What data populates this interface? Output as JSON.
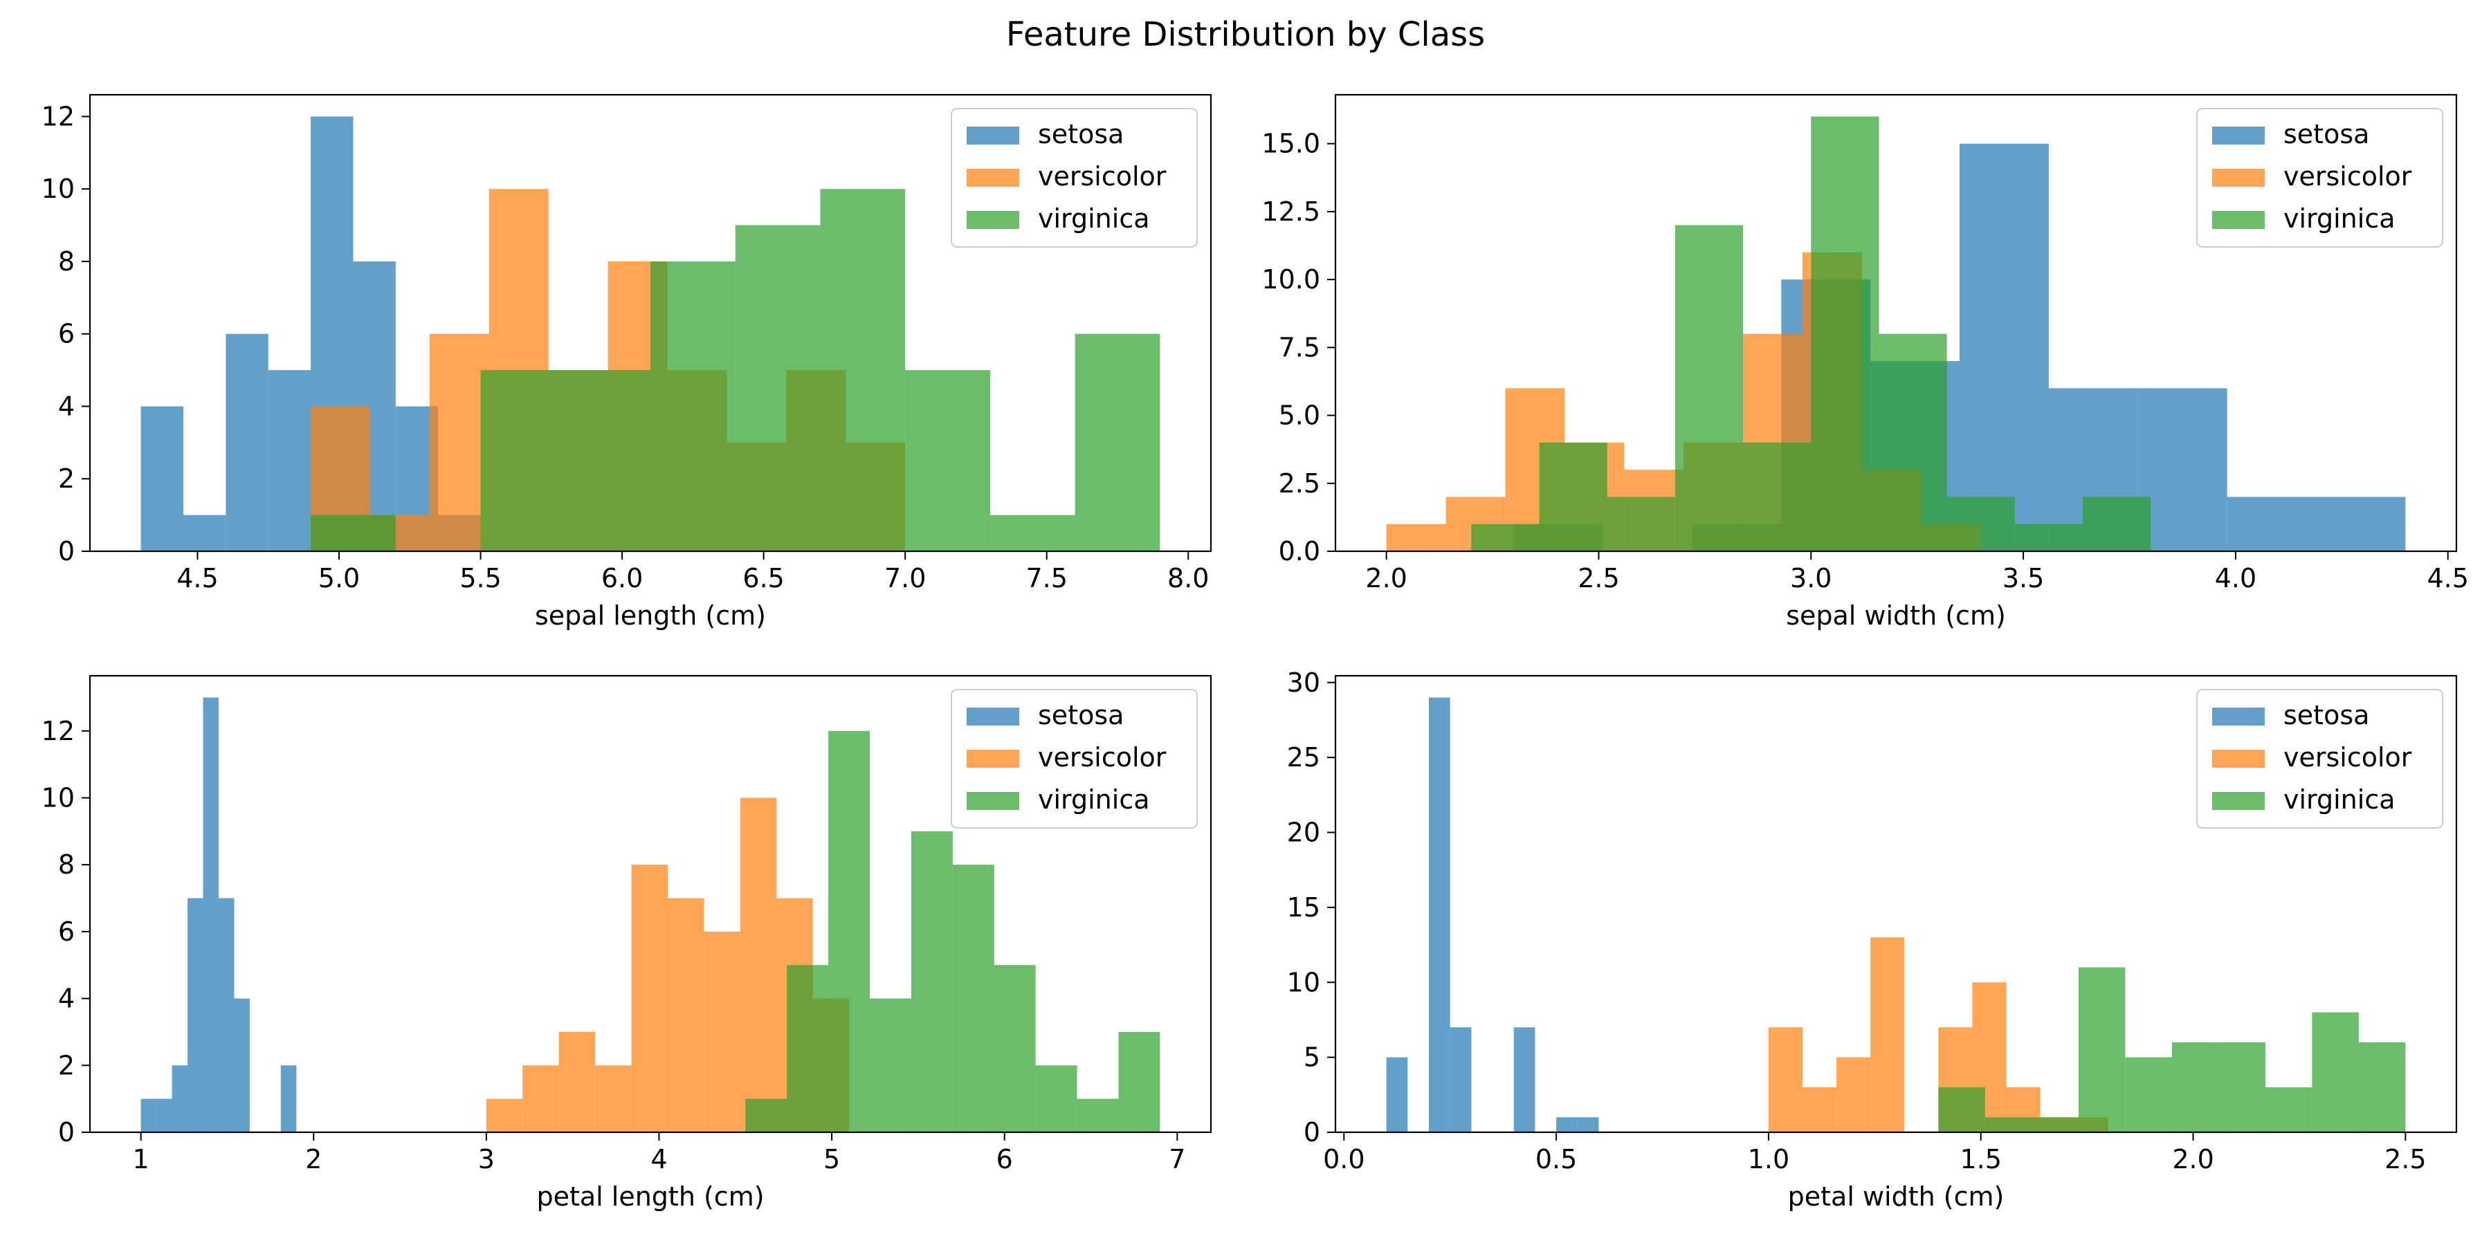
{
  "title": "Feature Distribution by Class",
  "colors": {
    "setosa": "#1f77b4",
    "versicolor": "#ff7f0e",
    "virginica": "#2ca02c"
  },
  "chart_data": [
    {
      "type": "bar",
      "xlabel": "sepal length (cm)",
      "xlim": [
        4.3,
        7.9
      ],
      "ylim": [
        0,
        12.6
      ],
      "xticks": [
        "4.5",
        "5.0",
        "5.5",
        "6.0",
        "6.5",
        "7.0",
        "7.5",
        "8.0"
      ],
      "yticks": [
        "0",
        "2",
        "4",
        "6",
        "8",
        "10",
        "12"
      ],
      "legend": "top-right",
      "series": [
        {
          "name": "setosa",
          "bin_edges": [
            4.3,
            4.45,
            4.6,
            4.75,
            4.9,
            5.05,
            5.2,
            5.35,
            5.5,
            5.65,
            5.8
          ],
          "values": [
            4,
            1,
            6,
            5,
            12,
            8,
            4,
            1,
            0,
            0
          ]
        },
        {
          "name": "versicolor",
          "bin_edges": [
            4.9,
            5.11,
            5.32,
            5.53,
            5.74,
            5.95,
            6.16,
            6.37,
            6.58,
            6.79,
            7.0
          ],
          "values": [
            4,
            1,
            6,
            10,
            5,
            8,
            5,
            3,
            5,
            3
          ]
        },
        {
          "name": "virginica",
          "bin_edges": [
            4.9,
            5.2,
            5.5,
            5.8,
            6.1,
            6.4,
            6.7,
            7.0,
            7.3,
            7.6,
            7.9
          ],
          "values": [
            1,
            0,
            5,
            5,
            8,
            9,
            10,
            5,
            1,
            6
          ]
        }
      ]
    },
    {
      "type": "bar",
      "xlabel": "sepal width (cm)",
      "xlim": [
        2.0,
        4.4
      ],
      "ylim": [
        0,
        16.8
      ],
      "xticks": [
        "2.0",
        "2.5",
        "3.0",
        "3.5",
        "4.0",
        "4.5"
      ],
      "yticks": [
        "0.0",
        "2.5",
        "5.0",
        "7.5",
        "10.0",
        "12.5",
        "15.0"
      ],
      "legend": "top-right",
      "series": [
        {
          "name": "setosa",
          "bin_edges": [
            2.3,
            2.51,
            2.72,
            2.93,
            3.14,
            3.35,
            3.56,
            3.77,
            3.98,
            4.19,
            4.4
          ],
          "values": [
            1,
            0,
            1,
            10,
            7,
            15,
            6,
            6,
            2,
            2
          ]
        },
        {
          "name": "versicolor",
          "bin_edges": [
            2.0,
            2.14,
            2.28,
            2.42,
            2.56,
            2.7,
            2.84,
            2.98,
            3.12,
            3.26,
            3.4
          ],
          "values": [
            1,
            2,
            6,
            4,
            3,
            4,
            8,
            11,
            3,
            1
          ]
        },
        {
          "name": "virginica",
          "bin_edges": [
            2.2,
            2.36,
            2.52,
            2.68,
            2.84,
            3.0,
            3.16,
            3.32,
            3.48,
            3.64,
            3.8
          ],
          "values": [
            1,
            4,
            2,
            12,
            4,
            16,
            8,
            2,
            1,
            2
          ]
        }
      ]
    },
    {
      "type": "bar",
      "xlabel": "petal length (cm)",
      "xlim": [
        1.0,
        6.9
      ],
      "ylim": [
        0,
        13.65
      ],
      "xticks": [
        "1",
        "2",
        "3",
        "4",
        "5",
        "6",
        "7"
      ],
      "yticks": [
        "0",
        "2",
        "4",
        "6",
        "8",
        "10",
        "12"
      ],
      "legend": "top-right",
      "series": [
        {
          "name": "setosa",
          "bin_edges": [
            1.0,
            1.09,
            1.18,
            1.27,
            1.36,
            1.45,
            1.54,
            1.63,
            1.72,
            1.81,
            1.9
          ],
          "values": [
            1,
            1,
            2,
            7,
            13,
            7,
            4,
            0,
            0,
            2
          ]
        },
        {
          "name": "versicolor",
          "bin_edges": [
            3.0,
            3.21,
            3.42,
            3.63,
            3.84,
            4.05,
            4.26,
            4.47,
            4.68,
            4.89,
            5.1
          ],
          "values": [
            1,
            2,
            3,
            2,
            8,
            7,
            6,
            10,
            7,
            4
          ]
        },
        {
          "name": "virginica",
          "bin_edges": [
            4.5,
            4.74,
            4.98,
            5.22,
            5.46,
            5.7,
            5.94,
            6.18,
            6.42,
            6.66,
            6.9
          ],
          "values": [
            1,
            5,
            12,
            4,
            9,
            8,
            5,
            2,
            1,
            3
          ]
        }
      ]
    },
    {
      "type": "bar",
      "xlabel": "petal width (cm)",
      "xlim": [
        0.1,
        2.5
      ],
      "ylim": [
        0,
        30.45
      ],
      "xticks": [
        "0.0",
        "0.5",
        "1.0",
        "1.5",
        "2.0",
        "2.5"
      ],
      "yticks": [
        "0",
        "5",
        "10",
        "15",
        "20",
        "25",
        "30"
      ],
      "legend": "top-right",
      "series": [
        {
          "name": "setosa",
          "bin_edges": [
            0.1,
            0.15,
            0.2,
            0.25,
            0.3,
            0.35,
            0.4,
            0.45,
            0.5,
            0.55,
            0.6
          ],
          "values": [
            5,
            0,
            29,
            7,
            0,
            0,
            7,
            0,
            1,
            1
          ]
        },
        {
          "name": "versicolor",
          "bin_edges": [
            1.0,
            1.08,
            1.16,
            1.24,
            1.32,
            1.4,
            1.48,
            1.56,
            1.64,
            1.72,
            1.8
          ],
          "values": [
            7,
            3,
            5,
            13,
            0,
            7,
            10,
            3,
            1,
            1
          ]
        },
        {
          "name": "virginica",
          "bin_edges": [
            1.4,
            1.51,
            1.62,
            1.73,
            1.84,
            1.95,
            2.06,
            2.17,
            2.28,
            2.39,
            2.5
          ],
          "values": [
            3,
            1,
            1,
            11,
            5,
            6,
            6,
            3,
            8,
            6
          ]
        }
      ]
    }
  ]
}
